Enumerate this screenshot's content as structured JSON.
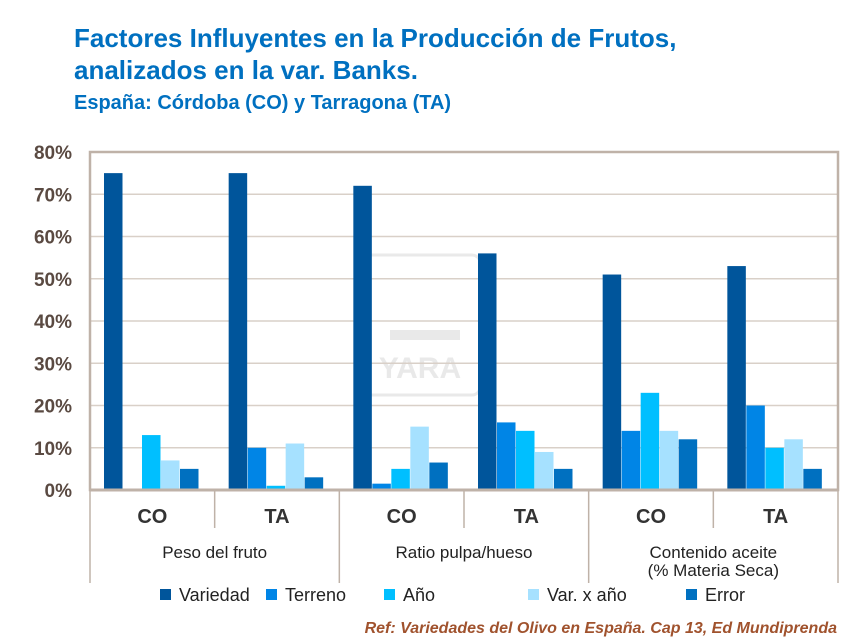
{
  "title_line1": "Factores Influyentes en la Producción de Frutos,",
  "title_line2": "analizados en la var. Banks.",
  "subtitle": "España: Córdoba (CO) y Tarragona (TA)",
  "reference": "Ref:  Variedades del Olivo en España. Cap 13, Ed Mundiprenda",
  "watermark": "YARA",
  "chart_data": {
    "type": "bar",
    "ylim": [
      0,
      80
    ],
    "yticks": [
      "0%",
      "10%",
      "20%",
      "30%",
      "40%",
      "50%",
      "60%",
      "70%",
      "80%"
    ],
    "grid": true,
    "legend": "bottom",
    "categories": [
      "CO",
      "TA",
      "CO",
      "TA",
      "CO",
      "TA"
    ],
    "groups": [
      {
        "label": "Peso del fruto",
        "label2": ""
      },
      {
        "label": "Ratio pulpa/hueso",
        "label2": ""
      },
      {
        "label": "Contenido aceite",
        "label2": "(% Materia Seca)"
      }
    ],
    "series": [
      {
        "name": "Variedad",
        "color": "#00559B",
        "values": [
          75,
          75,
          72,
          56,
          51,
          53
        ]
      },
      {
        "name": "Terreno",
        "color": "#0085E6",
        "values": [
          0,
          10,
          1.5,
          16,
          14,
          20
        ]
      },
      {
        "name": "Año",
        "color": "#00BFFF",
        "values": [
          13,
          1,
          5,
          14,
          23,
          10
        ]
      },
      {
        "name": "Var. x año",
        "color": "#A6E1FF",
        "values": [
          7,
          11,
          15,
          9,
          14,
          12
        ]
      },
      {
        "name": "Error",
        "color": "#0070C0",
        "values": [
          5,
          3,
          6.5,
          5,
          12,
          5
        ]
      }
    ]
  }
}
